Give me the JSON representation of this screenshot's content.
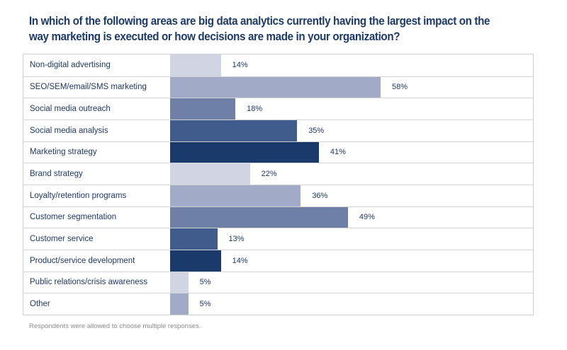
{
  "chart_data": {
    "type": "bar",
    "orientation": "horizontal",
    "title": "In which of the following areas are big data analytics currently having the largest impact on the way marketing is executed or how decisions are made in your organization?",
    "xlabel": "",
    "ylabel": "",
    "categories": [
      "Non-digital advertising",
      "SEO/SEM/email/SMS marketing",
      "Social media outreach",
      "Social media analysis",
      "Marketing strategy",
      "Brand strategy",
      "Loyalty/retention programs",
      "Customer segmentation",
      "Customer service",
      "Product/service development",
      "Public relations/crisis awareness",
      "Other"
    ],
    "values": [
      14,
      58,
      18,
      35,
      41,
      22,
      36,
      49,
      13,
      14,
      5,
      5
    ],
    "value_labels": [
      "14%",
      "58%",
      "18%",
      "35%",
      "41%",
      "22%",
      "36%",
      "49%",
      "13%",
      "14%",
      "5%",
      "5%"
    ],
    "unit": "%",
    "colors": [
      "#d0d4e3",
      "#a1aac6",
      "#6f80a6",
      "#405c8c",
      "#1a3a6c"
    ],
    "grid": false,
    "legend": "none",
    "footnote": "Respondents were allowed to choose multiple responses."
  }
}
